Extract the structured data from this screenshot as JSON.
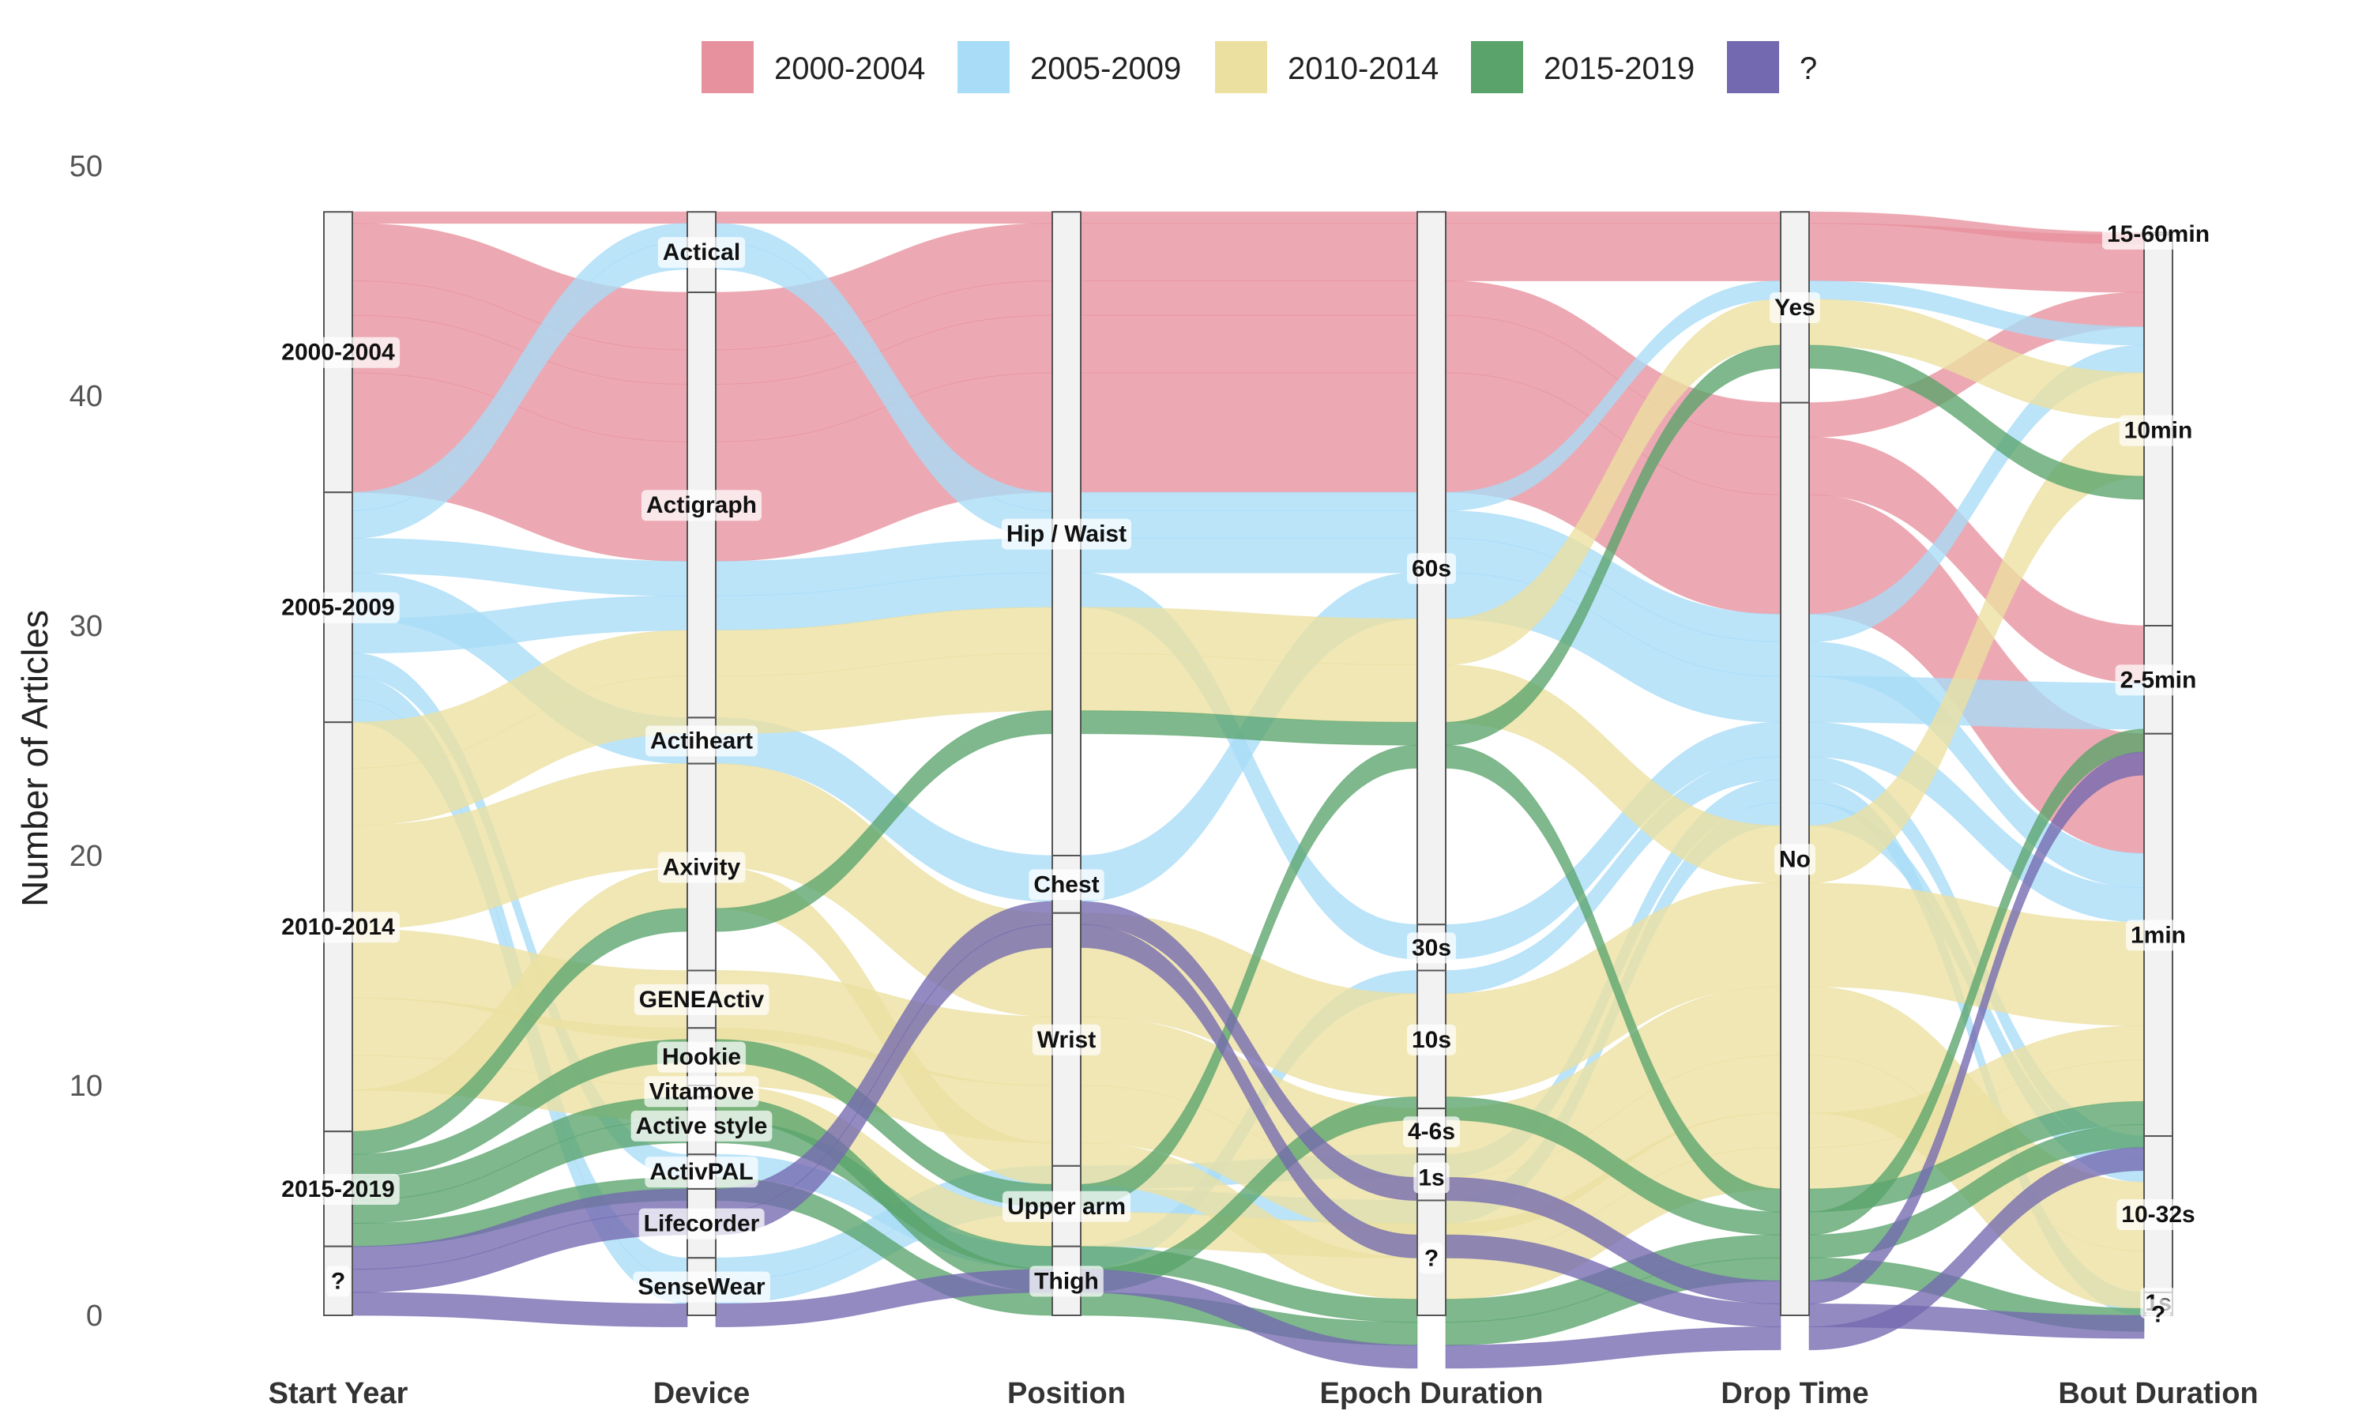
{
  "chart_data": {
    "type": "alluvial",
    "ylabel": "Number of Articles",
    "ylim": [
      0,
      50
    ],
    "yticks": [
      "0",
      "10",
      "20",
      "30",
      "40",
      "50"
    ],
    "legend_position": "top",
    "groups": [
      {
        "name": "2000-2004",
        "color": "#e8919e"
      },
      {
        "name": "2005-2009",
        "color": "#a8dcf7"
      },
      {
        "name": "2010-2014",
        "color": "#ece0a0"
      },
      {
        "name": "2015-2019",
        "color": "#5aa46c"
      },
      {
        "name": "?",
        "color": "#7369b0"
      }
    ],
    "axes": [
      {
        "label": "Start Year",
        "nodes": [
          {
            "name": "2000-2004",
            "from": 35.8,
            "to": 48
          },
          {
            "name": "2005-2009",
            "from": 25.8,
            "to": 35.8
          },
          {
            "name": "2010-2014",
            "from": 8,
            "to": 25.8
          },
          {
            "name": "2015-2019",
            "from": 3,
            "to": 8
          },
          {
            "name": "?",
            "from": 0,
            "to": 3
          }
        ]
      },
      {
        "label": "Device",
        "nodes": [
          {
            "name": "Actical",
            "from": 44.5,
            "to": 48
          },
          {
            "name": "Actigraph",
            "from": 26,
            "to": 44.5
          },
          {
            "name": "Actiheart",
            "from": 24,
            "to": 26
          },
          {
            "name": "Axivity",
            "from": 15,
            "to": 24
          },
          {
            "name": "GENEActiv",
            "from": 12.5,
            "to": 15
          },
          {
            "name": "Hookie",
            "from": 10,
            "to": 12.5
          },
          {
            "name": "Vitamove",
            "from": 9.5,
            "to": 10
          },
          {
            "name": "Active style",
            "from": 7,
            "to": 9.5
          },
          {
            "name": "ActivPAL",
            "from": 5.5,
            "to": 7
          },
          {
            "name": "Lifecorder",
            "from": 2.5,
            "to": 5.5
          },
          {
            "name": "SenseWear",
            "from": 0,
            "to": 2.5
          }
        ]
      },
      {
        "label": "Position",
        "nodes": [
          {
            "name": "Hip / Waist",
            "from": 20,
            "to": 48
          },
          {
            "name": "Chest",
            "from": 17.5,
            "to": 20
          },
          {
            "name": "Wrist",
            "from": 6.5,
            "to": 17.5
          },
          {
            "name": "Upper arm",
            "from": 3,
            "to": 6.5
          },
          {
            "name": "Thigh",
            "from": 0,
            "to": 3
          }
        ]
      },
      {
        "label": "Epoch Duration",
        "nodes": [
          {
            "name": "60s",
            "from": 17,
            "to": 48
          },
          {
            "name": "30s",
            "from": 15,
            "to": 17
          },
          {
            "name": "10s",
            "from": 9,
            "to": 15
          },
          {
            "name": "4-6s",
            "from": 7,
            "to": 9
          },
          {
            "name": "1s",
            "from": 5,
            "to": 7
          },
          {
            "name": "?",
            "from": 0,
            "to": 5
          }
        ]
      },
      {
        "label": "Drop Time",
        "nodes": [
          {
            "name": "Yes",
            "from": 39.7,
            "to": 48
          },
          {
            "name": "No",
            "from": 0,
            "to": 39.7
          }
        ]
      },
      {
        "label": "Bout Duration",
        "nodes": [
          {
            "name": "15-60min",
            "from": 47,
            "to": 47.1
          },
          {
            "name": "10min",
            "from": 30,
            "to": 47
          },
          {
            "name": "2-5min",
            "from": 25.3,
            "to": 30
          },
          {
            "name": "1min",
            "from": 7.8,
            "to": 25.3
          },
          {
            "name": "10-32s",
            "from": 1,
            "to": 7.8
          },
          {
            "name": "1s",
            "from": 0.1,
            "to": 1
          },
          {
            "name": "?",
            "from": 0,
            "to": 0.1
          }
        ]
      }
    ],
    "flows": [
      {
        "group": "2000-2004",
        "count": 0.5,
        "path": [
          "2000-2004",
          "Actical",
          "Hip / Waist",
          "60s",
          "Yes",
          "15-60min"
        ]
      },
      {
        "group": "2000-2004",
        "count": 2.5,
        "path": [
          "2000-2004",
          "Actigraph",
          "Hip / Waist",
          "60s",
          "Yes",
          "10min"
        ]
      },
      {
        "group": "2000-2004",
        "count": 1.5,
        "path": [
          "2000-2004",
          "Actigraph",
          "Hip / Waist",
          "60s",
          "No",
          "10min"
        ]
      },
      {
        "group": "2000-2004",
        "count": 2.5,
        "path": [
          "2000-2004",
          "Actigraph",
          "Hip / Waist",
          "60s",
          "No",
          "2-5min"
        ]
      },
      {
        "group": "2000-2004",
        "count": 5.2,
        "path": [
          "2000-2004",
          "Actigraph",
          "Hip / Waist",
          "60s",
          "No",
          "1min"
        ]
      },
      {
        "group": "2005-2009",
        "count": 0.8,
        "path": [
          "2005-2009",
          "Actical",
          "Hip / Waist",
          "60s",
          "Yes",
          "10min"
        ]
      },
      {
        "group": "2005-2009",
        "count": 1.2,
        "path": [
          "2005-2009",
          "Actical",
          "Hip / Waist",
          "60s",
          "No",
          "10min"
        ]
      },
      {
        "group": "2005-2009",
        "count": 1.5,
        "path": [
          "2005-2009",
          "Actigraph",
          "Hip / Waist",
          "60s",
          "No",
          "1min"
        ]
      },
      {
        "group": "2005-2009",
        "count": 2.0,
        "path": [
          "2005-2009",
          "Actiheart",
          "Chest",
          "60s",
          "No",
          "2-5min"
        ]
      },
      {
        "group": "2005-2009",
        "count": 1.5,
        "path": [
          "2005-2009",
          "Actigraph",
          "Hip / Waist",
          "30s",
          "No",
          "1min"
        ]
      },
      {
        "group": "2005-2009",
        "count": 1.0,
        "path": [
          "2005-2009",
          "ActivPAL",
          "Thigh",
          "10s",
          "No",
          "10-32s"
        ]
      },
      {
        "group": "2005-2009",
        "count": 1.0,
        "path": [
          "2005-2009",
          "SenseWear",
          "Upper arm",
          "1s",
          "No",
          "1s"
        ]
      },
      {
        "group": "2005-2009",
        "count": 1.0,
        "path": [
          "2005-2009",
          "SenseWear",
          "Upper arm",
          "?",
          "No",
          "10-32s"
        ]
      },
      {
        "group": "2010-2014",
        "count": 2.0,
        "path": [
          "2010-2014",
          "Actigraph",
          "Hip / Waist",
          "60s",
          "Yes",
          "10min"
        ]
      },
      {
        "group": "2010-2014",
        "count": 2.5,
        "path": [
          "2010-2014",
          "Actigraph",
          "Hip / Waist",
          "60s",
          "No",
          "10min"
        ]
      },
      {
        "group": "2010-2014",
        "count": 4.5,
        "path": [
          "2010-2014",
          "Axivity",
          "Wrist",
          "10s",
          "No",
          "1min"
        ]
      },
      {
        "group": "2010-2014",
        "count": 3.0,
        "path": [
          "2010-2014",
          "GENEActiv",
          "Wrist",
          "4-6s",
          "No",
          "10-32s"
        ]
      },
      {
        "group": "2010-2014",
        "count": 2.5,
        "path": [
          "2010-2014",
          "Hookie",
          "Wrist",
          "1s",
          "No",
          "10-32s"
        ]
      },
      {
        "group": "2010-2014",
        "count": 1.5,
        "path": [
          "2010-2014",
          "Vitamove",
          "Upper arm",
          "?",
          "No",
          "1min"
        ]
      },
      {
        "group": "2010-2014",
        "count": 1.8,
        "path": [
          "2010-2014",
          "Axivity",
          "Wrist",
          "?",
          "No",
          "1min"
        ]
      },
      {
        "group": "2015-2019",
        "count": 1.0,
        "path": [
          "2015-2019",
          "Axivity",
          "Hip / Waist",
          "60s",
          "Yes",
          "10min"
        ]
      },
      {
        "group": "2015-2019",
        "count": 1.0,
        "path": [
          "2015-2019",
          "GENEActiv",
          "Wrist",
          "60s",
          "No",
          "1min"
        ]
      },
      {
        "group": "2015-2019",
        "count": 1.0,
        "path": [
          "2015-2019",
          "Active style",
          "Thigh",
          "10s",
          "No",
          "2-5min"
        ]
      },
      {
        "group": "2015-2019",
        "count": 1.0,
        "path": [
          "2015-2019",
          "Active style",
          "Upper arm",
          "?",
          "No",
          "1min"
        ]
      },
      {
        "group": "2015-2019",
        "count": 1.0,
        "path": [
          "2015-2019",
          "ActivPAL",
          "Thigh",
          "?",
          "No",
          "10-32s"
        ]
      },
      {
        "group": "?",
        "count": 1.0,
        "path": [
          "?",
          "Lifecorder",
          "Chest",
          "4-6s",
          "No",
          "2-5min"
        ]
      },
      {
        "group": "?",
        "count": 1.0,
        "path": [
          "?",
          "Lifecorder",
          "Chest",
          "1s",
          "No",
          "1s"
        ]
      },
      {
        "group": "?",
        "count": 1.0,
        "path": [
          "?",
          "SenseWear",
          "Upper arm",
          "?",
          "No",
          "1min"
        ]
      }
    ]
  }
}
